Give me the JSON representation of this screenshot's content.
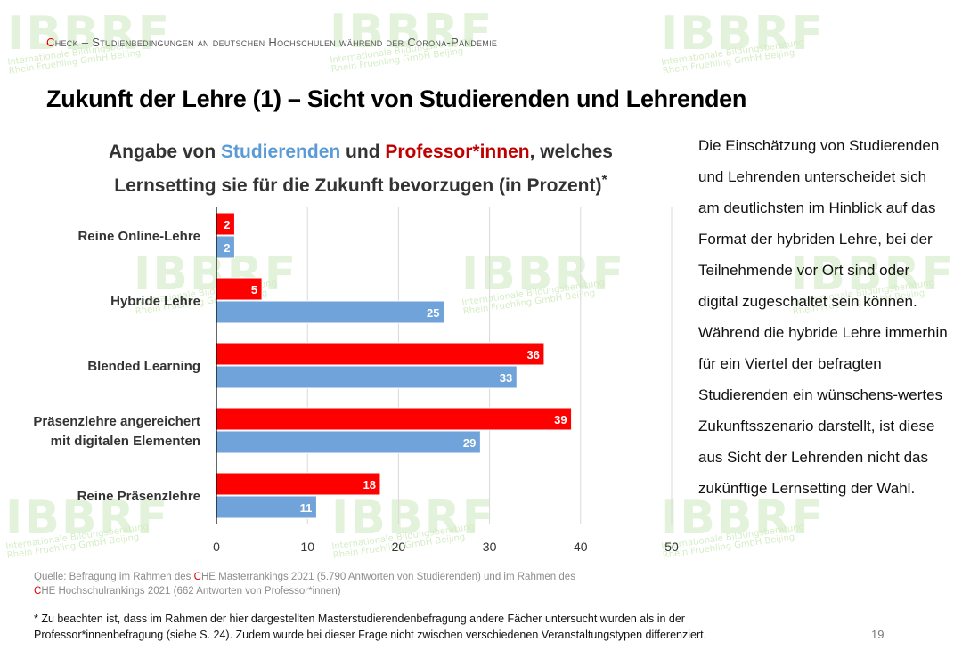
{
  "header": {
    "c1": "C",
    "t1": "heck – Studienbedingungen an deutschen Hochschulen während der Corona-Pandemie"
  },
  "title": "Zukunft der Lehre  (1) – Sicht von Studierenden und Lehrenden",
  "chart_heading": {
    "part1": "Angabe von ",
    "students": "Studierenden",
    "part2": " und ",
    "professors": "Professor*innen",
    "part3": ", welches",
    "line2": "Lernsetting sie für die Zukunft bevorzugen (in Prozent)",
    "mark": "*"
  },
  "colors": {
    "professors": "#ff0000",
    "students": "#6fa3d9",
    "grid": "#d9d9d9"
  },
  "chart_data": {
    "type": "bar",
    "orientation": "horizontal",
    "title": "Angabe von Studierenden und Professor*innen, welches Lernsetting sie für die Zukunft bevorzugen (in Prozent)",
    "categories": [
      [
        "Reine Online-Lehre"
      ],
      [
        "Hybride Lehre"
      ],
      [
        "Blended Learning"
      ],
      [
        "Präsenzlehre angereichert",
        "mit digitalen Elementen"
      ],
      [
        "Reine Präsenzlehre"
      ]
    ],
    "series": [
      {
        "name": "Professor*innen",
        "values": [
          2,
          5,
          36,
          39,
          18
        ]
      },
      {
        "name": "Studierende",
        "values": [
          2,
          25,
          33,
          29,
          11
        ]
      }
    ],
    "xlim": [
      0,
      50
    ],
    "xticks": [
      "0",
      "10",
      "20",
      "30",
      "40",
      "50"
    ],
    "grid": true,
    "xlabel": "",
    "ylabel": ""
  },
  "source": {
    "l1a": "Quelle: Befragung im Rahmen des ",
    "c1": "C",
    "l1b": "HE Masterrankings 2021 (5.790 Antworten von Studierenden) und im Rahmen des",
    "c2": "C",
    "l2": "HE Hochschulrankings 2021 (662 Antworten von Professor*innen)"
  },
  "footnote": {
    "l1": "* Zu beachten ist, dass im Rahmen der hier dargestellten Masterstudierendenbefragung andere Fächer untersucht wurden als in der",
    "l2": "Professor*innenbefragung (siehe S. 24). Zudem wurde bei dieser Frage nicht zwischen verschiedenen Veranstaltungstypen differenziert."
  },
  "page_number": "19",
  "side_text": "Die Einschätzung von Studierenden und Lehrenden unterscheidet sich am deutlichsten im Hinblick auf das Format der hybriden Lehre, bei der Teilnehmende vor Ort sind oder digital zugeschaltet sein können. Während die hybride Lehre immerhin für ein Viertel der befragten Studierenden ein wünschens-wertes Zukunftsszenario darstellt, ist diese aus Sicht der Lehrenden nicht das zukünftige Lernsetting der Wahl.",
  "watermark": {
    "brand": "IBBRF",
    "line1": "Internationale Bildungsberatung",
    "line2": "Rhein Fruehling GmbH Beijing"
  }
}
